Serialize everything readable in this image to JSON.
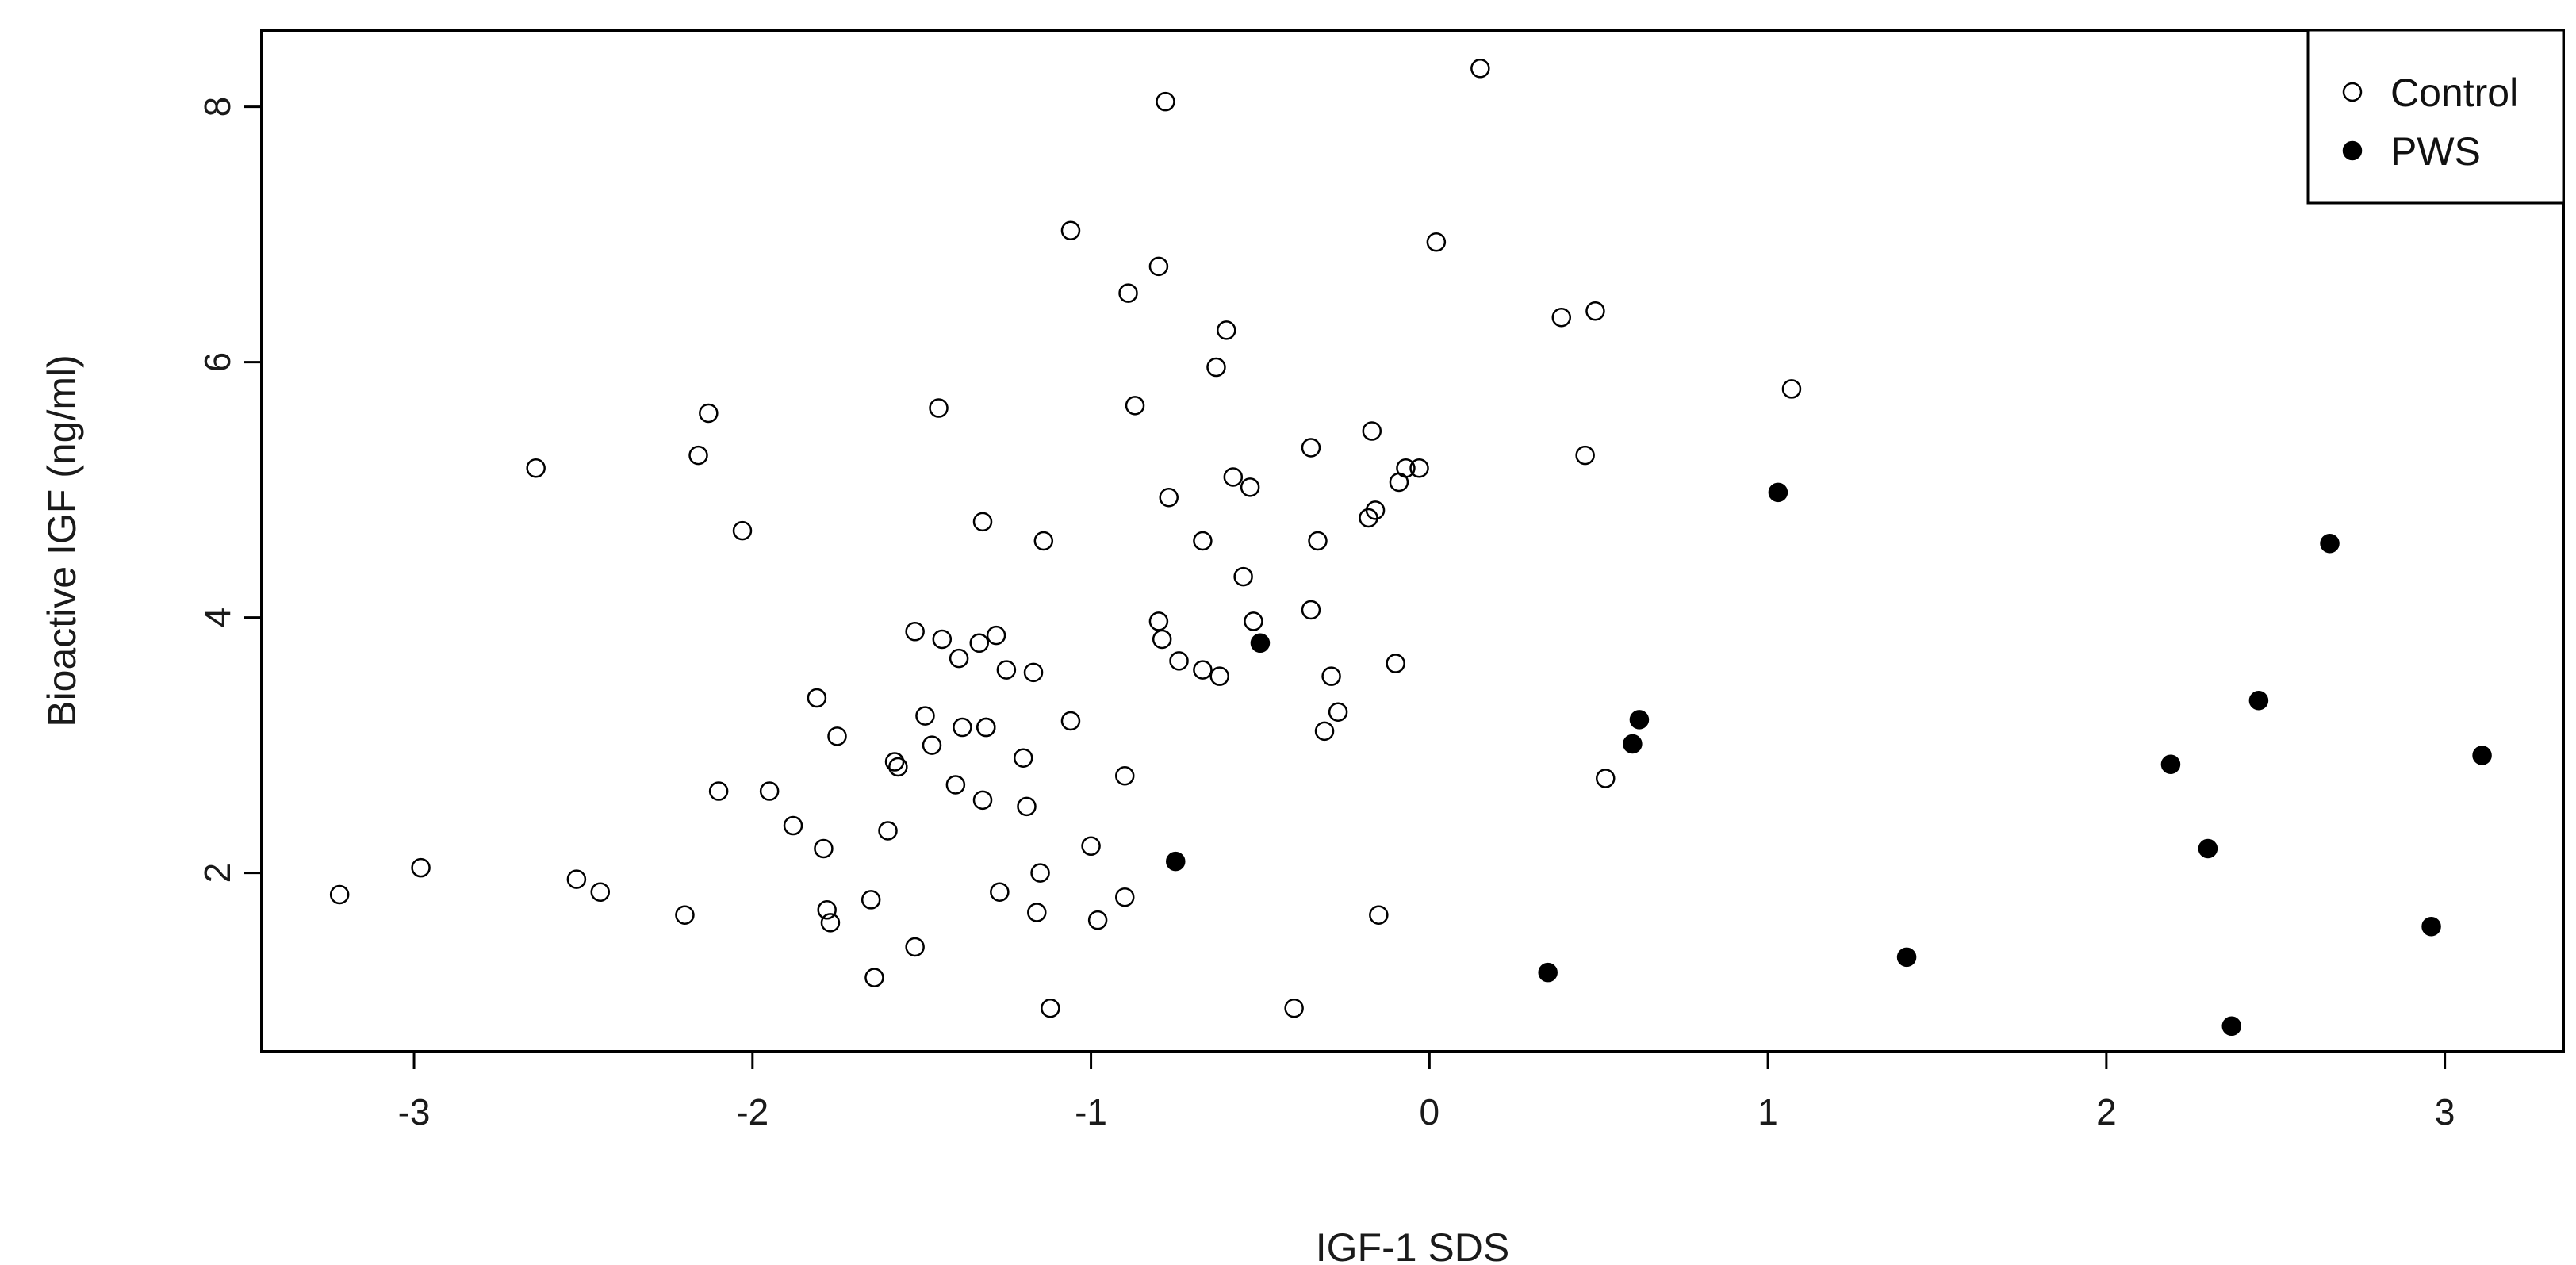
{
  "chart_data": {
    "type": "scatter",
    "title": "",
    "xlabel": "IGF-1 SDS",
    "ylabel": "Bioactive IGF (ng/ml)",
    "xlim": [
      -3.45,
      3.35
    ],
    "ylim": [
      0.6,
      8.6
    ],
    "xticks": [
      -3,
      -2,
      -1,
      0,
      1,
      2,
      3
    ],
    "xtick_labels": [
      "-3",
      "-2",
      "-1",
      "0",
      "1",
      "2",
      "3"
    ],
    "yticks": [
      2,
      4,
      6,
      8
    ],
    "ytick_labels": [
      "2",
      "4",
      "6",
      "8"
    ],
    "grid": false,
    "legend_position": "top-right",
    "series": [
      {
        "name": "Control",
        "marker": "open-circle",
        "x": [
          -3.22,
          -2.98,
          -2.64,
          -2.52,
          -2.45,
          -2.2,
          -2.16,
          -2.13,
          -2.1,
          -2.03,
          -1.95,
          -1.88,
          -1.81,
          -1.79,
          -1.78,
          -1.77,
          -1.75,
          -1.65,
          -1.64,
          -1.6,
          -1.58,
          -1.57,
          -1.52,
          -1.52,
          -1.49,
          -1.47,
          -1.45,
          -1.44,
          -1.4,
          -1.39,
          -1.38,
          -1.33,
          -1.32,
          -1.32,
          -1.31,
          -1.31,
          -1.28,
          -1.27,
          -1.25,
          -1.2,
          -1.19,
          -1.17,
          -1.16,
          -1.15,
          -1.14,
          -1.12,
          -1.06,
          -1.06,
          -1.0,
          -0.98,
          -0.9,
          -0.9,
          -0.89,
          -0.87,
          -0.8,
          -0.8,
          -0.79,
          -0.78,
          -0.77,
          -0.74,
          -0.67,
          -0.67,
          -0.63,
          -0.62,
          -0.6,
          -0.58,
          -0.55,
          -0.53,
          -0.52,
          -0.4,
          -0.35,
          -0.35,
          -0.33,
          -0.31,
          -0.29,
          -0.27,
          -0.18,
          -0.17,
          -0.16,
          -0.15,
          -0.1,
          -0.09,
          -0.07,
          -0.03,
          0.02,
          0.15,
          0.39,
          0.46,
          0.49,
          0.52,
          1.07
        ],
        "y": [
          1.83,
          2.04,
          5.17,
          1.95,
          1.85,
          1.67,
          5.27,
          5.6,
          2.64,
          4.68,
          2.64,
          2.37,
          3.37,
          2.19,
          1.71,
          1.61,
          3.07,
          1.79,
          1.18,
          2.33,
          2.87,
          2.83,
          3.89,
          1.42,
          3.23,
          3.0,
          5.64,
          3.83,
          2.69,
          3.68,
          3.14,
          3.8,
          2.57,
          4.75,
          3.14,
          3.14,
          3.86,
          1.85,
          3.59,
          2.9,
          2.52,
          3.57,
          1.69,
          2.0,
          4.6,
          0.94,
          7.03,
          3.19,
          2.21,
          1.63,
          1.81,
          2.76,
          6.54,
          5.66,
          3.97,
          6.75,
          3.83,
          8.04,
          4.94,
          3.66,
          4.6,
          3.59,
          5.96,
          3.54,
          6.25,
          5.1,
          4.32,
          5.02,
          3.97,
          0.94,
          5.33,
          4.06,
          4.6,
          3.11,
          3.54,
          3.26,
          4.78,
          5.46,
          4.84,
          1.67,
          3.64,
          5.06,
          5.17,
          5.17,
          6.94,
          8.3,
          6.35,
          5.27,
          6.4,
          2.74,
          5.79
        ]
      },
      {
        "name": "PWS",
        "marker": "filled-circle",
        "x": [
          -0.75,
          -0.5,
          0.35,
          0.6,
          0.62,
          1.03,
          1.41,
          2.19,
          2.3,
          2.37,
          2.45,
          2.66,
          2.96,
          3.11
        ],
        "y": [
          2.09,
          3.8,
          1.22,
          3.01,
          3.2,
          4.98,
          1.34,
          2.85,
          2.19,
          0.8,
          3.35,
          4.58,
          1.58,
          2.92
        ]
      }
    ]
  }
}
